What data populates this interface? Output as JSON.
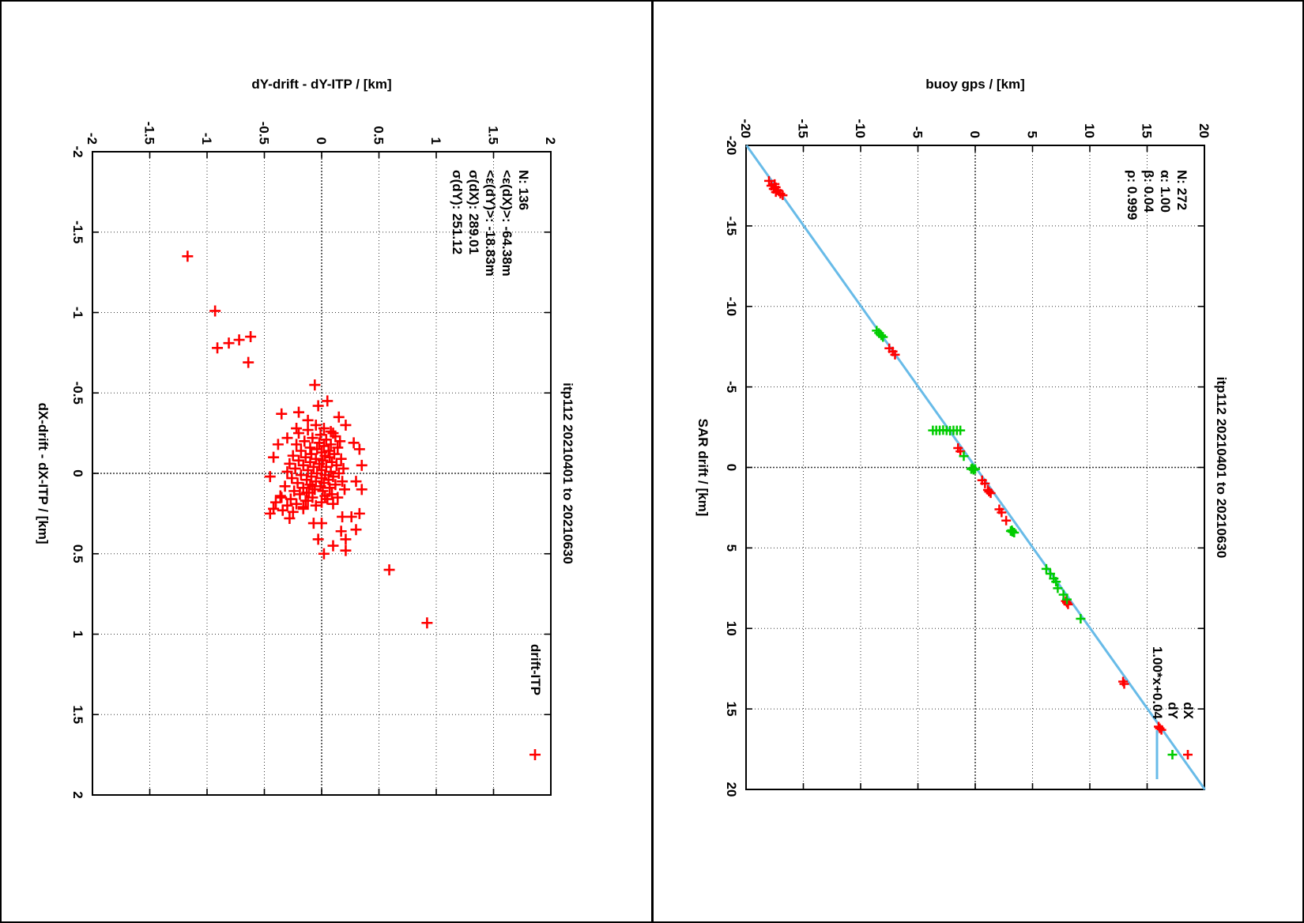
{
  "window": {
    "background": "#ffffff",
    "frame_color": "#000000"
  },
  "colors": {
    "red": "#ff0000",
    "green": "#00cc00",
    "blue_line": "#68bbe8",
    "grid": "#333333"
  },
  "chart_data": [
    {
      "type": "scatter",
      "id": "drift-minus-itp-errors",
      "title": "itp112 20210401 to 20210630",
      "xlabel": "dX-drift - dX-ITP / [km]",
      "ylabel": "dY-drift - dY-ITP / [km]",
      "xlim": [
        -2,
        2
      ],
      "ylim": [
        -2,
        2
      ],
      "x_tick_labels": [
        "-2",
        "-1.5",
        "-1",
        "-0.5",
        "0",
        "0.5",
        "1",
        "1.5",
        "2"
      ],
      "y_tick_labels": [
        "-2",
        "-1.5",
        "-1",
        "-0.5",
        "0",
        "0.5",
        "1",
        "1.5",
        "2"
      ],
      "grid": true,
      "stats_lines": [
        "N: 136",
        "<ε(dX)>:  -64.38m",
        "<ε(dY)>: -18.83m",
        "σ(dX):  289.01",
        "σ(dY):  251.12"
      ],
      "legend_position": "top-right",
      "legend": [
        {
          "label": "drift-ITP",
          "sample": "plus",
          "color": "#ff0000"
        }
      ],
      "series": [
        {
          "name": "drift-ITP",
          "marker": "plus",
          "color": "#ff0000",
          "points": [
            [
              -1.35,
              -1.17
            ],
            [
              -1.01,
              -0.93
            ],
            [
              -0.78,
              -0.91
            ],
            [
              -0.81,
              -0.81
            ],
            [
              -0.83,
              -0.72
            ],
            [
              -0.85,
              -0.62
            ],
            [
              -0.69,
              -0.64
            ],
            [
              -0.55,
              -0.06
            ],
            [
              0.93,
              0.92
            ],
            [
              0.6,
              0.59
            ],
            [
              0.48,
              0.21
            ],
            [
              -0.37,
              -0.35
            ],
            [
              -0.42,
              -0.03
            ],
            [
              -0.3,
              0.21
            ],
            [
              -0.19,
              0.28
            ],
            [
              -0.25,
              0.1
            ],
            [
              -0.33,
              -0.12
            ],
            [
              -0.28,
              -0.22
            ],
            [
              -0.38,
              -0.2
            ],
            [
              -0.22,
              -0.3
            ],
            [
              -0.15,
              0.33
            ],
            [
              0.27,
              0.18
            ],
            [
              0.27,
              0.26
            ],
            [
              0.36,
              0.17
            ],
            [
              0.41,
              0.21
            ],
            [
              0.41,
              -0.03
            ],
            [
              0.31,
              -0.07
            ],
            [
              0.31,
              0.0
            ],
            [
              0.22,
              -0.16
            ],
            [
              0.17,
              -0.12
            ],
            [
              0.12,
              -0.13
            ],
            [
              0.08,
              -0.08
            ],
            [
              0.25,
              0.33
            ],
            [
              0.45,
              0.1
            ],
            [
              0.1,
              0.35
            ],
            [
              0.05,
              0.3
            ],
            [
              -0.05,
              0.35
            ],
            [
              0.5,
              0.02
            ],
            [
              0.35,
              0.3
            ],
            [
              -0.1,
              -0.42
            ],
            [
              0.02,
              -0.45
            ],
            [
              -0.18,
              -0.38
            ],
            [
              0.15,
              -0.35
            ],
            [
              0.28,
              -0.28
            ],
            [
              -0.45,
              0.05
            ],
            [
              -0.35,
              0.15
            ],
            [
              -0.3,
              -0.05
            ],
            [
              -0.28,
              0.02
            ],
            [
              -0.27,
              -0.12
            ],
            [
              -0.26,
              0.08
            ],
            [
              -0.25,
              -0.2
            ],
            [
              -0.24,
              -0.01
            ],
            [
              -0.23,
              0.12
            ],
            [
              -0.22,
              -0.08
            ],
            [
              -0.21,
              0.04
            ],
            [
              -0.2,
              -0.15
            ],
            [
              -0.2,
              0.16
            ],
            [
              -0.19,
              -0.02
            ],
            [
              -0.18,
              0.08
            ],
            [
              -0.18,
              -0.22
            ],
            [
              -0.17,
              0.02
            ],
            [
              -0.16,
              -0.1
            ],
            [
              -0.16,
              0.14
            ],
            [
              -0.15,
              -0.04
            ],
            [
              -0.14,
              0.06
            ],
            [
              -0.14,
              -0.18
            ],
            [
              -0.13,
              0.0
            ],
            [
              -0.12,
              -0.09
            ],
            [
              -0.12,
              0.11
            ],
            [
              -0.11,
              -0.25
            ],
            [
              -0.11,
              0.03
            ],
            [
              -0.1,
              -0.14
            ],
            [
              -0.1,
              0.07
            ],
            [
              -0.09,
              -0.05
            ],
            [
              -0.09,
              0.17
            ],
            [
              -0.08,
              -0.2
            ],
            [
              -0.08,
              0.01
            ],
            [
              -0.07,
              -0.1
            ],
            [
              -0.07,
              0.09
            ],
            [
              -0.06,
              -0.28
            ],
            [
              -0.06,
              -0.02
            ],
            [
              -0.05,
              0.13
            ],
            [
              -0.05,
              -0.16
            ],
            [
              -0.04,
              0.04
            ],
            [
              -0.04,
              -0.07
            ],
            [
              -0.03,
              0.19
            ],
            [
              -0.03,
              -0.23
            ],
            [
              -0.02,
              0.0
            ],
            [
              -0.02,
              -0.12
            ],
            [
              -0.01,
              0.08
            ],
            [
              -0.01,
              -0.3
            ],
            [
              0.0,
              -0.04
            ],
            [
              0.0,
              0.15
            ],
            [
              0.01,
              -0.18
            ],
            [
              0.01,
              0.03
            ],
            [
              0.02,
              -0.09
            ],
            [
              0.02,
              0.1
            ],
            [
              0.03,
              -0.26
            ],
            [
              0.03,
              0.0
            ],
            [
              0.04,
              -0.13
            ],
            [
              0.04,
              0.06
            ],
            [
              0.05,
              -0.05
            ],
            [
              0.05,
              0.18
            ],
            [
              0.06,
              -0.21
            ],
            [
              0.06,
              0.02
            ],
            [
              0.07,
              -0.1
            ],
            [
              0.07,
              0.12
            ],
            [
              0.08,
              -0.32
            ],
            [
              0.08,
              -0.01
            ],
            [
              0.09,
              -0.16
            ],
            [
              0.09,
              0.07
            ],
            [
              0.1,
              -0.06
            ],
            [
              0.1,
              0.2
            ],
            [
              0.11,
              -0.24
            ],
            [
              0.11,
              0.01
            ],
            [
              0.12,
              -0.11
            ],
            [
              0.13,
              0.09
            ],
            [
              0.13,
              -0.19
            ],
            [
              0.14,
              0.03
            ],
            [
              0.14,
              -0.36
            ],
            [
              0.15,
              -0.08
            ],
            [
              0.15,
              0.14
            ],
            [
              0.16,
              -0.27
            ],
            [
              0.16,
              0.05
            ],
            [
              0.17,
              -0.14
            ],
            [
              0.18,
              0.0
            ],
            [
              0.18,
              -0.4
            ],
            [
              0.19,
              -0.22
            ],
            [
              0.19,
              0.1
            ],
            [
              0.2,
              -0.3
            ],
            [
              0.2,
              -0.05
            ],
            [
              0.21,
              -0.16
            ],
            [
              0.22,
              -0.42
            ],
            [
              0.23,
              -0.34
            ],
            [
              0.24,
              -0.25
            ],
            [
              0.25,
              -0.45
            ]
          ]
        }
      ]
    },
    {
      "type": "scatter",
      "id": "sar-drift-vs-buoy-gps",
      "title": "itp112 20210401 to 20210630",
      "xlabel": "SAR drift / [km]",
      "ylabel": "buoy gps / [km]",
      "xlim": [
        -20,
        20
      ],
      "ylim": [
        -20,
        20
      ],
      "x_tick_labels": [
        "-20",
        "-15",
        "-10",
        "-5",
        "0",
        "5",
        "10",
        "15",
        "20"
      ],
      "y_tick_labels": [
        "-20",
        "-15",
        "-10",
        "-5",
        "0",
        "5",
        "10",
        "15",
        "20"
      ],
      "grid": true,
      "stats_lines": [
        "N: 272",
        "α: 1.00",
        "β: 0.04",
        "ρ: 0.999"
      ],
      "legend_position": "top-right",
      "legend": [
        {
          "label": "dX",
          "sample": "plus",
          "color": "#ff0000"
        },
        {
          "label": "dY",
          "sample": "plus",
          "color": "#00cc00"
        },
        {
          "label": "1.00*x+0.04",
          "sample": "line",
          "color": "#68bbe8"
        }
      ],
      "fit_line": {
        "label": "1.00*x+0.04",
        "color": "#68bbe8",
        "from": [
          -20,
          -19.96
        ],
        "to": [
          20,
          20.04
        ]
      },
      "series": [
        {
          "name": "dX",
          "marker": "plus",
          "color": "#ff0000",
          "points": [
            [
              -17.8,
              -18.0
            ],
            [
              -17.6,
              -17.5
            ],
            [
              -17.5,
              -17.8
            ],
            [
              -17.4,
              -17.4
            ],
            [
              -17.3,
              -17.6
            ],
            [
              -17.2,
              -17.2
            ],
            [
              -17.1,
              -17.4
            ],
            [
              -17.0,
              -17.0
            ],
            [
              -16.9,
              -16.8
            ],
            [
              -7.4,
              -7.5
            ],
            [
              -7.2,
              -7.2
            ],
            [
              -7.0,
              -7.0
            ],
            [
              -1.2,
              -1.5
            ],
            [
              -1.0,
              -1.3
            ],
            [
              0.8,
              0.6
            ],
            [
              1.0,
              0.85
            ],
            [
              1.4,
              1.1
            ],
            [
              1.5,
              1.2
            ],
            [
              1.6,
              1.35
            ],
            [
              2.6,
              2.1
            ],
            [
              2.8,
              2.3
            ],
            [
              3.3,
              2.7
            ],
            [
              8.3,
              7.9
            ],
            [
              8.4,
              8.0
            ],
            [
              8.5,
              8.1
            ],
            [
              13.3,
              12.9
            ],
            [
              13.45,
              13.0
            ],
            [
              16.1,
              16.0
            ],
            [
              16.2,
              16.1
            ],
            [
              16.3,
              16.25
            ]
          ]
        },
        {
          "name": "dY",
          "marker": "plus",
          "color": "#00cc00",
          "points": [
            [
              -8.5,
              -8.6
            ],
            [
              -8.35,
              -8.4
            ],
            [
              -8.2,
              -8.2
            ],
            [
              -8.1,
              -8.05
            ],
            [
              -2.3,
              -3.7
            ],
            [
              -2.3,
              -3.4
            ],
            [
              -2.3,
              -3.1
            ],
            [
              -2.32,
              -2.8
            ],
            [
              -2.3,
              -2.5
            ],
            [
              -2.28,
              -2.2
            ],
            [
              -2.3,
              -1.9
            ],
            [
              -2.3,
              -1.6
            ],
            [
              -2.3,
              -1.3
            ],
            [
              -0.7,
              -1.0
            ],
            [
              0.1,
              -0.35
            ],
            [
              0.15,
              -0.15
            ],
            [
              0.1,
              0.0
            ],
            [
              0.05,
              -0.25
            ],
            [
              3.95,
              3.1
            ],
            [
              4.0,
              3.25
            ],
            [
              4.05,
              3.4
            ],
            [
              3.9,
              3.2
            ],
            [
              6.3,
              6.2
            ],
            [
              6.6,
              6.55
            ],
            [
              6.9,
              6.85
            ],
            [
              7.1,
              7.05
            ],
            [
              7.5,
              7.2
            ],
            [
              7.9,
              7.7
            ],
            [
              8.2,
              8.0
            ],
            [
              9.4,
              9.2
            ]
          ]
        }
      ]
    }
  ]
}
